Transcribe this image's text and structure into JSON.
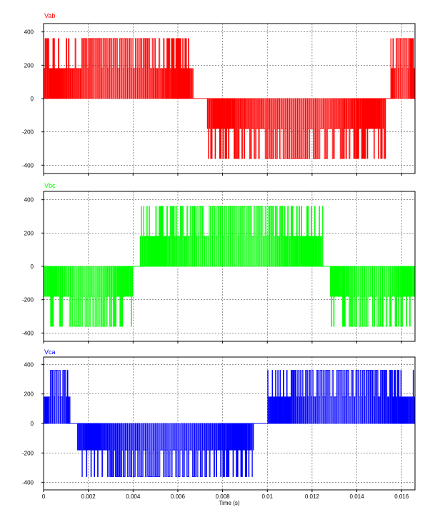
{
  "chart_data": [
    {
      "type": "line",
      "title": "Vab",
      "color": "#ff0000",
      "xlabel": "",
      "ylabel": "",
      "xlim": [
        0,
        0.0166
      ],
      "ylim": [
        -450,
        450
      ],
      "yticks": [
        -400,
        -200,
        0,
        200,
        400
      ],
      "ytick_labels": [
        "-400",
        "-200",
        "0",
        "200",
        "400"
      ],
      "xticks": [
        0,
        0.002,
        0.004,
        0.006,
        0.008,
        0.01,
        0.012,
        0.014,
        0.016
      ],
      "grid": true,
      "waveform": "PWM line voltage, amplitude 360 V, fundamental 60 Hz",
      "segments": [
        {
          "x_start": 0.0,
          "x_end": 0.0067,
          "level": 360
        },
        {
          "x_start": 0.0067,
          "x_end": 0.0073,
          "level": 0
        },
        {
          "x_start": 0.0073,
          "x_end": 0.0153,
          "level": -360
        },
        {
          "x_start": 0.0153,
          "x_end": 0.0155,
          "level": 0
        },
        {
          "x_start": 0.0155,
          "x_end": 0.0166,
          "level": 360
        }
      ]
    },
    {
      "type": "line",
      "title": "Vbc",
      "color": "#00ff00",
      "xlabel": "",
      "ylabel": "",
      "xlim": [
        0,
        0.0166
      ],
      "ylim": [
        -450,
        450
      ],
      "yticks": [
        -400,
        -200,
        0,
        200,
        400
      ],
      "ytick_labels": [
        "-400",
        "-200",
        "0",
        "200",
        "400"
      ],
      "xticks": [
        0,
        0.002,
        0.004,
        0.006,
        0.008,
        0.01,
        0.012,
        0.014,
        0.016
      ],
      "grid": true,
      "waveform": "PWM line voltage, amplitude 360 V, fundamental 60 Hz",
      "segments": [
        {
          "x_start": 0.0,
          "x_end": 0.004,
          "level": -360
        },
        {
          "x_start": 0.004,
          "x_end": 0.0043,
          "level": 0
        },
        {
          "x_start": 0.0043,
          "x_end": 0.0125,
          "level": 360
        },
        {
          "x_start": 0.0125,
          "x_end": 0.0128,
          "level": 0
        },
        {
          "x_start": 0.0128,
          "x_end": 0.0166,
          "level": -360
        }
      ]
    },
    {
      "type": "line",
      "title": "Vca",
      "color": "#0000ff",
      "xlabel": "Time (s)",
      "ylabel": "",
      "xlim": [
        0,
        0.0166
      ],
      "ylim": [
        -450,
        450
      ],
      "yticks": [
        -400,
        -200,
        0,
        200,
        400
      ],
      "ytick_labels": [
        "-400",
        "-200",
        "0",
        "200",
        "400"
      ],
      "xticks": [
        0,
        0.002,
        0.004,
        0.006,
        0.008,
        0.01,
        0.012,
        0.014,
        0.016
      ],
      "xtick_labels": [
        "0",
        "0.002",
        "0.004",
        "0.006",
        "0.008",
        "0.01",
        "0.012",
        "0.014",
        "0.016"
      ],
      "grid": true,
      "waveform": "PWM line voltage, amplitude 360 V, fundamental 60 Hz",
      "segments": [
        {
          "x_start": 0.0,
          "x_end": 0.0012,
          "level": 360
        },
        {
          "x_start": 0.0012,
          "x_end": 0.0015,
          "level": 0
        },
        {
          "x_start": 0.0015,
          "x_end": 0.0094,
          "level": -360
        },
        {
          "x_start": 0.0094,
          "x_end": 0.01,
          "level": 0
        },
        {
          "x_start": 0.01,
          "x_end": 0.0166,
          "level": 360
        }
      ]
    }
  ]
}
